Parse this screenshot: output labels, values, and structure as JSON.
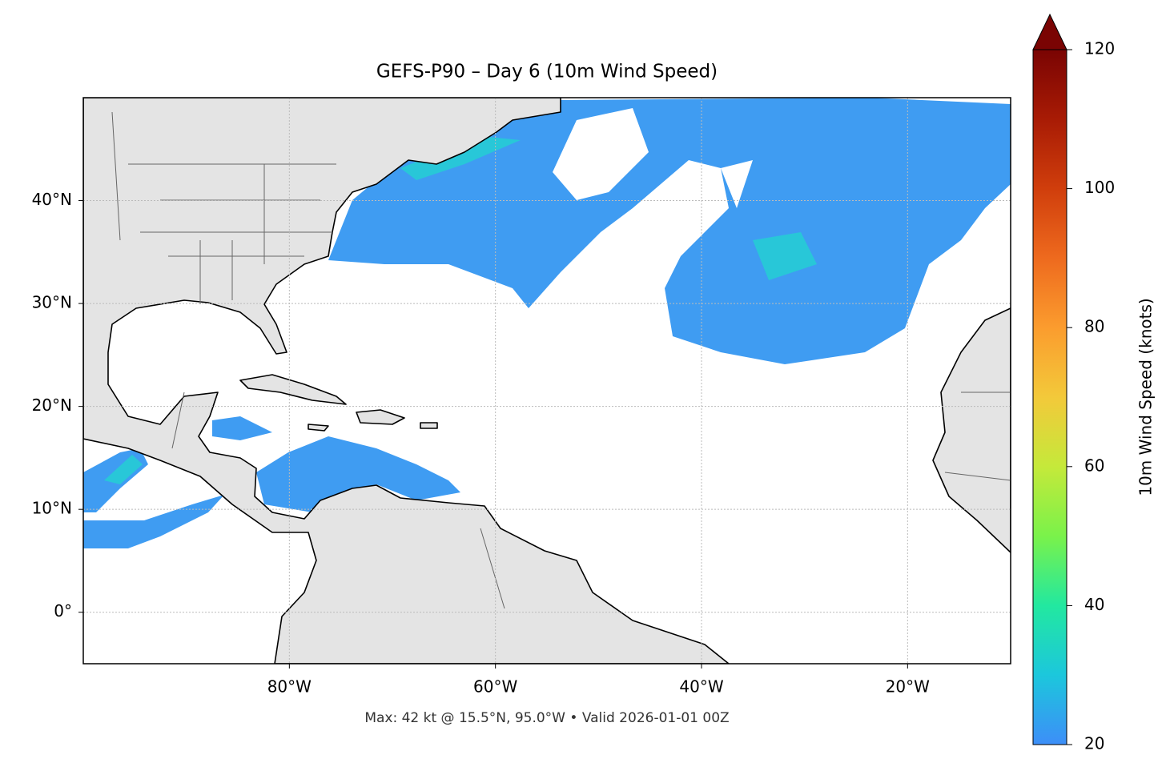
{
  "map": {
    "title": "GEFS-P90 – Day 6 (10m Wind Speed)",
    "footer": "Max: 42 kt @ 15.5°N, 95.0°W • Valid 2026-01-01 00Z",
    "lon_range": [
      -100,
      -10
    ],
    "lat_range": [
      -5,
      50
    ],
    "lon_ticks": [
      {
        "value": -80,
        "label": "80°W"
      },
      {
        "value": -60,
        "label": "60°W"
      },
      {
        "value": -40,
        "label": "40°W"
      },
      {
        "value": -20,
        "label": "20°W"
      }
    ],
    "lat_ticks": [
      {
        "value": 40,
        "label": "40°N"
      },
      {
        "value": 30,
        "label": "30°N"
      },
      {
        "value": 20,
        "label": "20°N"
      },
      {
        "value": 10,
        "label": "10°N"
      },
      {
        "value": 0,
        "label": "0°"
      }
    ],
    "grid": true,
    "colorbar": {
      "label": "10m Wind Speed (knots)",
      "lim": [
        20,
        120
      ],
      "ticks": [
        20,
        40,
        60,
        80,
        100,
        120
      ]
    }
  }
}
